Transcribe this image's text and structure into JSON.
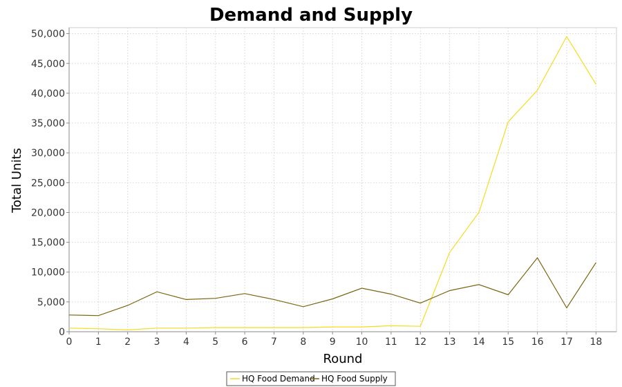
{
  "chart_data": {
    "type": "line",
    "title": "Demand and Supply",
    "xlabel": "Round",
    "ylabel": "Total Units",
    "x": [
      0,
      1,
      2,
      3,
      4,
      5,
      6,
      7,
      8,
      9,
      10,
      11,
      12,
      13,
      14,
      15,
      16,
      17,
      18
    ],
    "xlim": [
      0,
      18.7
    ],
    "ylim": [
      0,
      51000
    ],
    "yticks": [
      0,
      5000,
      10000,
      15000,
      20000,
      25000,
      30000,
      35000,
      40000,
      45000,
      50000
    ],
    "ytick_labels": [
      "0",
      "5,000",
      "10,000",
      "15,000",
      "20,000",
      "25,000",
      "30,000",
      "35,000",
      "40,000",
      "45,000",
      "50,000"
    ],
    "xtick_labels": [
      "0",
      "1",
      "2",
      "3",
      "4",
      "5",
      "6",
      "7",
      "8",
      "9",
      "10",
      "11",
      "12",
      "13",
      "14",
      "15",
      "16",
      "17",
      "18"
    ],
    "grid": true,
    "legend_position": "bottom-center",
    "series": [
      {
        "name": "HQ Food Demand",
        "color": "#f5dc1e",
        "values": [
          600,
          500,
          300,
          600,
          600,
          700,
          700,
          700,
          700,
          800,
          800,
          1000,
          900,
          13300,
          20000,
          35200,
          40500,
          49500,
          41500
        ]
      },
      {
        "name": "HQ Food Supply",
        "color": "#7a6410",
        "values": [
          2800,
          2700,
          4400,
          6700,
          5400,
          5600,
          6400,
          5400,
          4200,
          5500,
          7300,
          6300,
          4800,
          6900,
          7900,
          6200,
          12400,
          4000,
          11600
        ]
      }
    ]
  }
}
